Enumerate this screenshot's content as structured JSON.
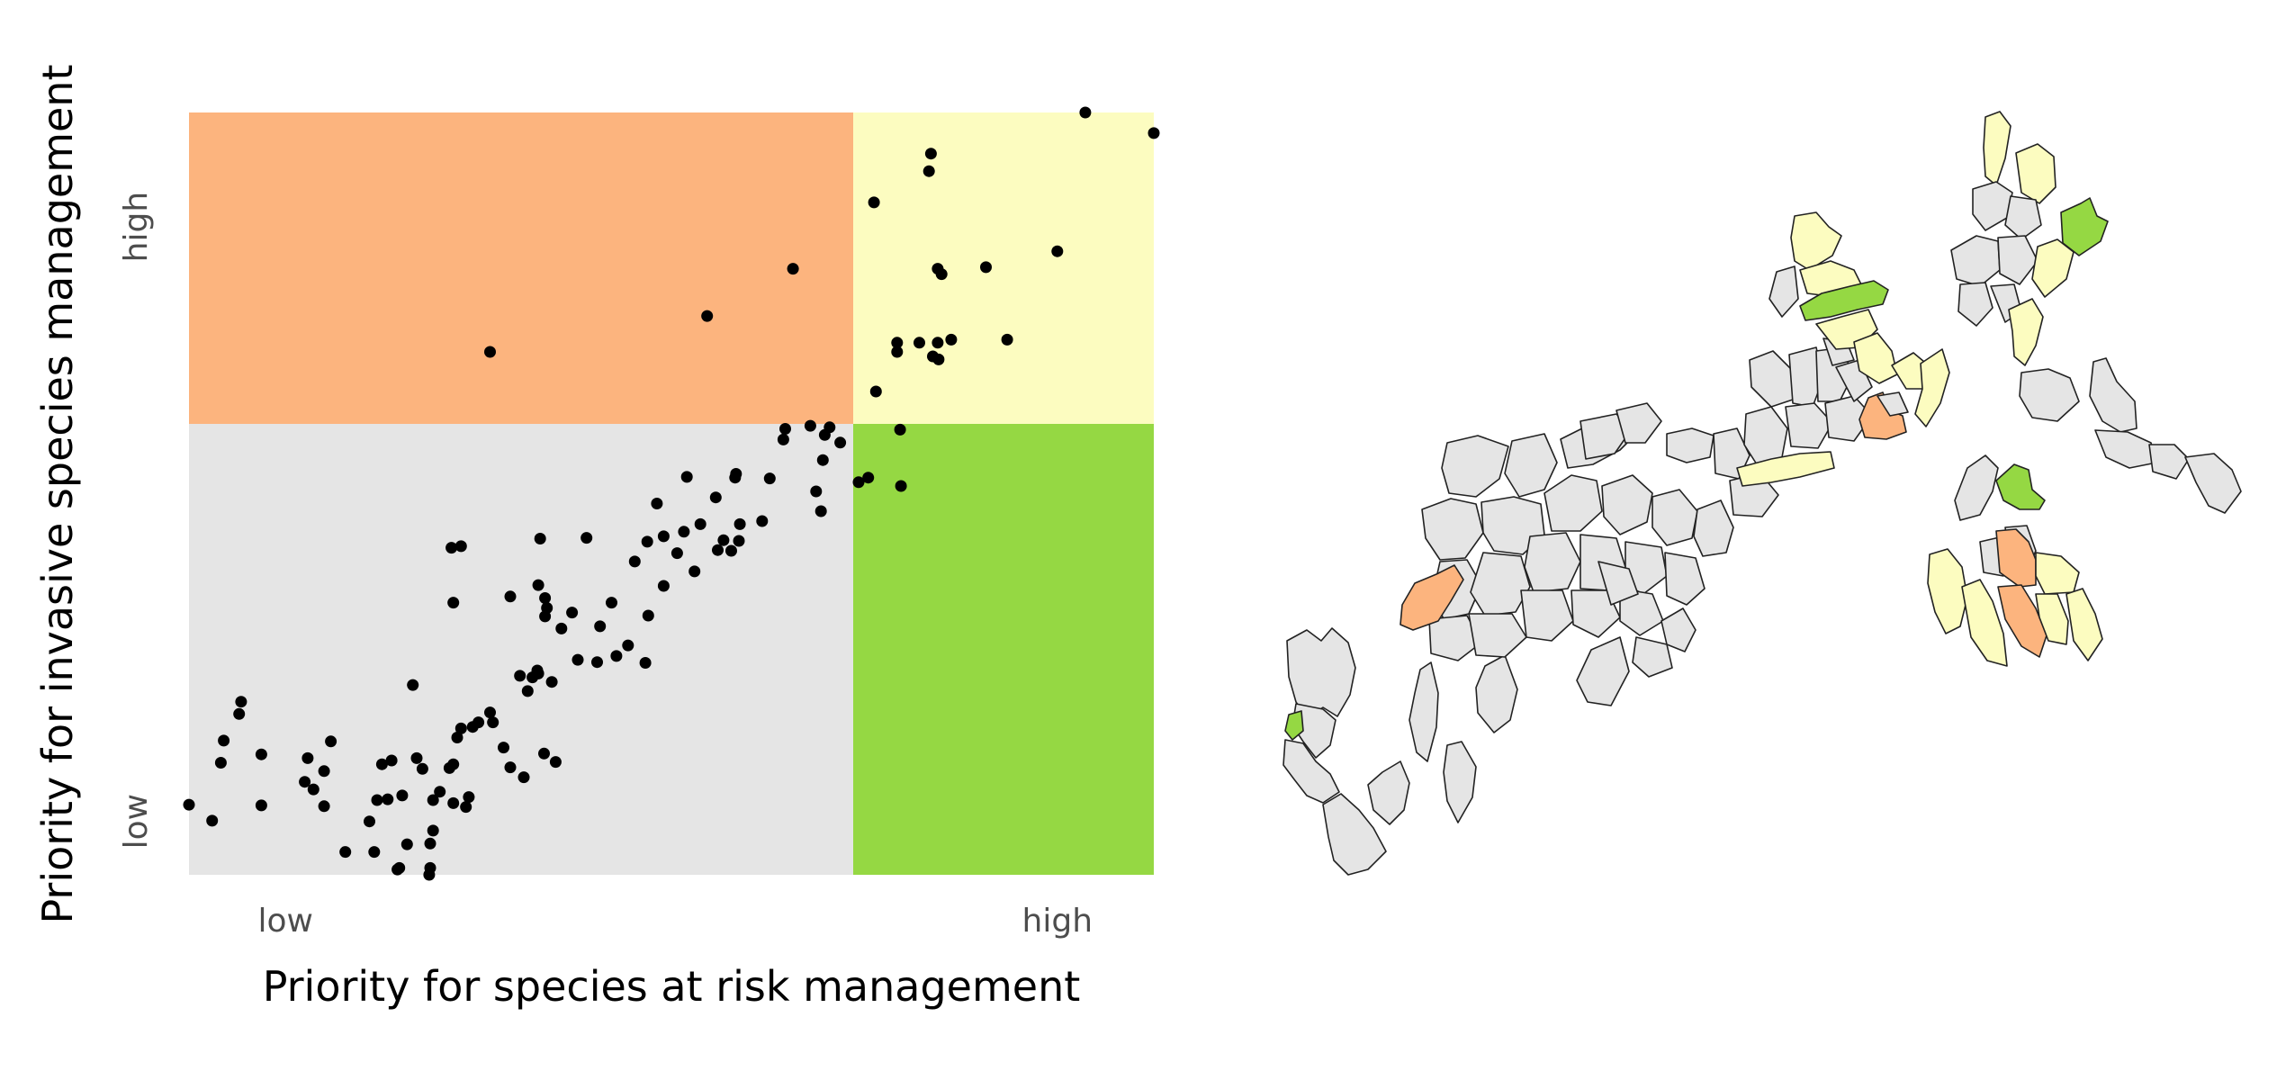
{
  "chart_data": {
    "type": "scatter",
    "xlabel": "Priority for species at risk management",
    "ylabel": "Priority for invasive species management",
    "x_ticks": [
      {
        "label": "low",
        "value": 0.1
      },
      {
        "label": "high",
        "value": 0.9
      }
    ],
    "y_ticks": [
      {
        "label": "high",
        "value": 0.85
      },
      {
        "label": "low",
        "value": 0.07
      }
    ],
    "xlim": [
      0,
      1
    ],
    "ylim": [
      0,
      1
    ],
    "grid": false,
    "quadrant_threshold": {
      "x": 0.69,
      "y": 0.59
    },
    "quadrant_colors": {
      "low_x_high_y": "#fcb47e",
      "high_x_high_y": "#fcfcc0",
      "low_x_low_y": "#e5e5e5",
      "high_x_low_y": "#95d843"
    },
    "points": [
      [
        0.929,
        1.0
      ],
      [
        1.0,
        0.973
      ],
      [
        0.769,
        0.946
      ],
      [
        0.767,
        0.923
      ],
      [
        0.71,
        0.882
      ],
      [
        0.9,
        0.818
      ],
      [
        0.826,
        0.797
      ],
      [
        0.776,
        0.795
      ],
      [
        0.78,
        0.788
      ],
      [
        0.626,
        0.795
      ],
      [
        0.537,
        0.733
      ],
      [
        0.312,
        0.686
      ],
      [
        0.734,
        0.698
      ],
      [
        0.79,
        0.702
      ],
      [
        0.848,
        0.702
      ],
      [
        0.776,
        0.698
      ],
      [
        0.757,
        0.698
      ],
      [
        0.734,
        0.686
      ],
      [
        0.771,
        0.68
      ],
      [
        0.777,
        0.676
      ],
      [
        0.712,
        0.634
      ],
      [
        0.737,
        0.584
      ],
      [
        0.644,
        0.589
      ],
      [
        0.664,
        0.587
      ],
      [
        0.618,
        0.585
      ],
      [
        0.659,
        0.577
      ],
      [
        0.675,
        0.567
      ],
      [
        0.616,
        0.571
      ],
      [
        0.657,
        0.544
      ],
      [
        0.567,
        0.526
      ],
      [
        0.65,
        0.503
      ],
      [
        0.602,
        0.52
      ],
      [
        0.566,
        0.521
      ],
      [
        0.516,
        0.522
      ],
      [
        0.704,
        0.521
      ],
      [
        0.738,
        0.51
      ],
      [
        0.694,
        0.515
      ],
      [
        0.546,
        0.495
      ],
      [
        0.485,
        0.487
      ],
      [
        0.655,
        0.477
      ],
      [
        0.594,
        0.464
      ],
      [
        0.571,
        0.46
      ],
      [
        0.53,
        0.46
      ],
      [
        0.513,
        0.45
      ],
      [
        0.492,
        0.444
      ],
      [
        0.475,
        0.437
      ],
      [
        0.57,
        0.438
      ],
      [
        0.554,
        0.439
      ],
      [
        0.272,
        0.429
      ],
      [
        0.282,
        0.431
      ],
      [
        0.364,
        0.441
      ],
      [
        0.412,
        0.442
      ],
      [
        0.548,
        0.426
      ],
      [
        0.562,
        0.425
      ],
      [
        0.506,
        0.422
      ],
      [
        0.462,
        0.411
      ],
      [
        0.524,
        0.398
      ],
      [
        0.492,
        0.379
      ],
      [
        0.362,
        0.38
      ],
      [
        0.274,
        0.357
      ],
      [
        0.333,
        0.365
      ],
      [
        0.369,
        0.363
      ],
      [
        0.438,
        0.357
      ],
      [
        0.397,
        0.344
      ],
      [
        0.371,
        0.35
      ],
      [
        0.369,
        0.339
      ],
      [
        0.386,
        0.323
      ],
      [
        0.476,
        0.34
      ],
      [
        0.426,
        0.326
      ],
      [
        0.455,
        0.301
      ],
      [
        0.443,
        0.287
      ],
      [
        0.473,
        0.278
      ],
      [
        0.403,
        0.282
      ],
      [
        0.423,
        0.279
      ],
      [
        0.361,
        0.268
      ],
      [
        0.376,
        0.253
      ],
      [
        0.343,
        0.261
      ],
      [
        0.356,
        0.259
      ],
      [
        0.315,
        0.2
      ],
      [
        0.232,
        0.249
      ],
      [
        0.362,
        0.264
      ],
      [
        0.351,
        0.241
      ],
      [
        0.312,
        0.213
      ],
      [
        0.294,
        0.194
      ],
      [
        0.278,
        0.18
      ],
      [
        0.21,
        0.15
      ],
      [
        0.236,
        0.153
      ],
      [
        0.14,
        0.136
      ],
      [
        0.12,
        0.122
      ],
      [
        0.036,
        0.176
      ],
      [
        0.075,
        0.158
      ],
      [
        0.033,
        0.147
      ],
      [
        0.054,
        0.227
      ],
      [
        0.052,
        0.211
      ],
      [
        0.147,
        0.175
      ],
      [
        0.123,
        0.153
      ],
      [
        0.129,
        0.112
      ],
      [
        0.075,
        0.091
      ],
      [
        0.14,
        0.09
      ],
      [
        0.242,
        0.139
      ],
      [
        0.221,
        0.104
      ],
      [
        0.206,
        0.099
      ],
      [
        0.29,
        0.102
      ],
      [
        0.253,
        0.098
      ],
      [
        0.274,
        0.094
      ],
      [
        0.287,
        0.089
      ],
      [
        0.0,
        0.092
      ],
      [
        0.024,
        0.071
      ],
      [
        0.195,
        0.098
      ],
      [
        0.26,
        0.109
      ],
      [
        0.326,
        0.167
      ],
      [
        0.368,
        0.159
      ],
      [
        0.333,
        0.141
      ],
      [
        0.38,
        0.148
      ],
      [
        0.347,
        0.128
      ],
      [
        0.253,
        0.058
      ],
      [
        0.25,
        0.041
      ],
      [
        0.226,
        0.04
      ],
      [
        0.192,
        0.03
      ],
      [
        0.25,
        0.009
      ],
      [
        0.218,
        0.009
      ],
      [
        0.216,
        0.007
      ],
      [
        0.162,
        0.03
      ],
      [
        0.249,
        0.0
      ],
      [
        0.187,
        0.07
      ],
      [
        0.27,
        0.14
      ],
      [
        0.274,
        0.145
      ],
      [
        0.3,
        0.2
      ],
      [
        0.282,
        0.192
      ],
      [
        0.2,
        0.145
      ]
    ]
  },
  "map": {
    "region_colors": {
      "neutral": "#e5e5e5",
      "orange": "#fcb47e",
      "yellow": "#fcfcc0",
      "green": "#95d843"
    }
  }
}
